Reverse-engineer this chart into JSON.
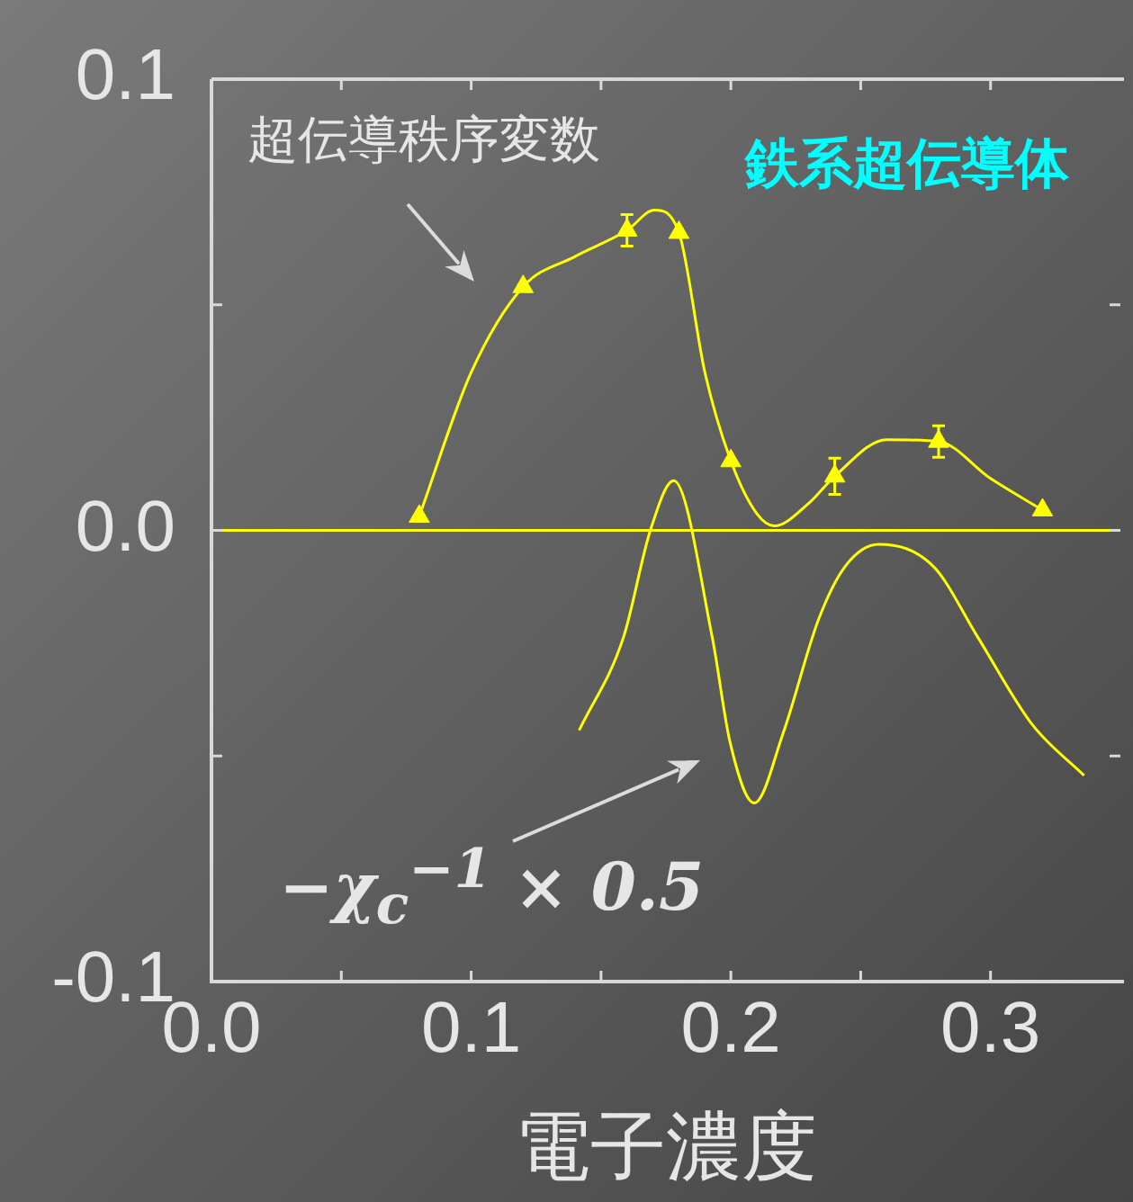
{
  "chart_data": {
    "type": "line",
    "xlabel": "電子濃度",
    "annotations": [
      "超伝導秩序変数",
      "鉄系超伝導体",
      "−χ$_{c}$$^{−1}$ × 0.5"
    ],
    "xlim": [
      0,
      0.35
    ],
    "ylim": [
      -0.1,
      0.1
    ],
    "xticks": [
      {
        "value": 0,
        "label": "0.0"
      },
      {
        "value": 0.05,
        "label": null
      },
      {
        "value": 0.1,
        "label": "0.1"
      },
      {
        "value": 0.15,
        "label": null
      },
      {
        "value": 0.2,
        "label": "0.2"
      },
      {
        "value": 0.25,
        "label": null
      },
      {
        "value": 0.3,
        "label": "0.3"
      }
    ],
    "yticks": [
      {
        "value": -0.1,
        "label": "-0.1"
      },
      {
        "value": -0.05,
        "label": null
      },
      {
        "value": 0.0,
        "label": "0.0"
      },
      {
        "value": 0.05,
        "label": null
      },
      {
        "value": 0.1,
        "label": "0.1"
      }
    ],
    "ref_lines": [
      {
        "axis": "y",
        "value": 0,
        "color": "#ffff00"
      }
    ],
    "series": [
      {
        "type": "scatter",
        "marker": "triangle",
        "color": "#ffff00",
        "x": [
          0.08,
          0.12,
          0.16,
          0.18,
          0.2,
          0.24,
          0.28,
          0.32
        ],
        "values": [
          0.0031,
          0.054,
          0.0665,
          0.066,
          0.0154,
          0.012,
          0.0197,
          0.0045
        ],
        "errors": [
          null,
          null,
          0.0035,
          null,
          null,
          0.004,
          0.0035,
          null
        ]
      },
      {
        "marker": "none",
        "line_style": "solid",
        "color": "#ffff00",
        "x": [
          0.08,
          0.1,
          0.12,
          0.14,
          0.16,
          0.1706,
          0.18,
          0.19,
          0.2,
          0.21,
          0.2167,
          0.23,
          0.24,
          0.26,
          0.28,
          0.3,
          0.32
        ],
        "values": [
          0.0031,
          0.035,
          0.054,
          0.0607,
          0.0665,
          0.071,
          0.066,
          0.035,
          0.0154,
          0.0037,
          0.001,
          0.006,
          0.012,
          0.0201,
          0.0197,
          0.0115,
          0.0045
        ]
      },
      {
        "marker": "none",
        "line_style": "solid",
        "color": "#ffff00",
        "x": [
          0.1416,
          0.1587,
          0.169,
          0.178,
          0.1928,
          0.1997,
          0.209,
          0.2201,
          0.2338,
          0.244,
          0.257,
          0.278,
          0.295,
          0.316,
          0.336
        ],
        "values": [
          -0.0443,
          -0.0236,
          0,
          0.011,
          -0.0236,
          -0.047,
          -0.0604,
          -0.045,
          -0.0197,
          -0.008,
          -0.0031,
          -0.008,
          -0.0236,
          -0.043,
          -0.0543
        ]
      }
    ]
  }
}
